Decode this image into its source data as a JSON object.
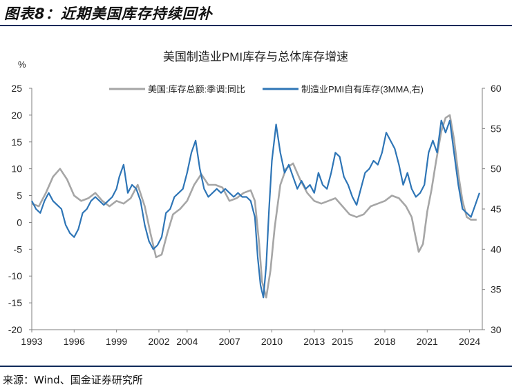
{
  "figure": {
    "label": "图表8：近期美国库存持续回补",
    "source": "来源：Wind、国金证券研究所"
  },
  "colors": {
    "us_inventory": "#a6a6a6",
    "pmi_inventory": "#2e75b6",
    "rule": "#0f2a5a"
  },
  "chart_data": {
    "type": "line",
    "title": "美国制造业PMI库存与总体库存增速",
    "ylabel_left": "%",
    "ylim_left": [
      -20,
      25
    ],
    "ylim_right": [
      30,
      60
    ],
    "yticks_left": [
      -20,
      -15,
      -10,
      -5,
      0,
      5,
      10,
      15,
      20,
      25
    ],
    "yticks_right": [
      30,
      35,
      40,
      45,
      50,
      55,
      60
    ],
    "xlim": [
      1993,
      2024.9
    ],
    "xticks": [
      1993,
      1996,
      1999,
      2002,
      2004,
      2007,
      2010,
      2013,
      2015,
      2018,
      2021,
      2024
    ],
    "legend_position": "top-center",
    "series": [
      {
        "name": "美国:库存总额:季调:同比",
        "axis": "left",
        "x": [
          1993.0,
          1993.5,
          1994.0,
          1994.5,
          1995.0,
          1995.5,
          1996.0,
          1996.5,
          1997.0,
          1997.5,
          1998.0,
          1998.5,
          1999.0,
          1999.5,
          2000.0,
          2000.5,
          2001.0,
          2001.4,
          2001.8,
          2002.2,
          2002.6,
          2003.0,
          2003.5,
          2004.0,
          2004.5,
          2005.0,
          2005.5,
          2006.0,
          2006.5,
          2007.0,
          2007.5,
          2008.0,
          2008.5,
          2008.8,
          2009.1,
          2009.3,
          2009.6,
          2009.9,
          2010.2,
          2010.6,
          2011.0,
          2011.5,
          2012.0,
          2012.5,
          2013.0,
          2013.5,
          2014.0,
          2014.5,
          2015.0,
          2015.5,
          2016.0,
          2016.5,
          2017.0,
          2017.5,
          2018.0,
          2018.5,
          2019.0,
          2019.5,
          2019.9,
          2020.2,
          2020.4,
          2020.7,
          2021.0,
          2021.3,
          2021.6,
          2022.0,
          2022.3,
          2022.6,
          2022.9,
          2023.2,
          2023.5,
          2023.8,
          2024.1,
          2024.5
        ],
        "values": [
          3.5,
          3.0,
          5.5,
          8.5,
          10.0,
          8.0,
          5.0,
          4.0,
          4.5,
          5.5,
          4.0,
          3.0,
          4.0,
          3.5,
          4.5,
          7.0,
          3.0,
          -2.0,
          -6.5,
          -6.0,
          -2.0,
          1.5,
          2.5,
          4.0,
          7.0,
          9.0,
          7.0,
          7.0,
          6.5,
          4.0,
          4.5,
          5.5,
          6.0,
          4.0,
          -4.0,
          -11.0,
          -14.0,
          -9.0,
          -1.0,
          7.0,
          10.0,
          11.0,
          8.0,
          5.5,
          4.0,
          3.5,
          4.0,
          4.5,
          3.0,
          1.5,
          1.0,
          1.5,
          3.0,
          3.5,
          4.0,
          5.0,
          4.5,
          3.0,
          1.0,
          -3.0,
          -5.5,
          -4.0,
          2.0,
          6.0,
          11.0,
          17.0,
          19.5,
          20.0,
          15.5,
          9.0,
          4.0,
          1.0,
          0.5,
          0.5
        ]
      },
      {
        "name": "制造业PMI自有库存(3MMA,右)",
        "axis": "right",
        "x": [
          1993.0,
          1993.3,
          1993.6,
          1993.9,
          1994.2,
          1994.5,
          1994.8,
          1995.1,
          1995.4,
          1995.7,
          1996.0,
          1996.3,
          1996.6,
          1996.9,
          1997.2,
          1997.5,
          1997.8,
          1998.1,
          1998.4,
          1998.7,
          1999.0,
          1999.2,
          1999.5,
          1999.8,
          2000.1,
          2000.4,
          2000.7,
          2001.0,
          2001.3,
          2001.6,
          2001.9,
          2002.2,
          2002.5,
          2002.8,
          2003.1,
          2003.4,
          2003.7,
          2004.0,
          2004.3,
          2004.6,
          2004.9,
          2005.2,
          2005.5,
          2005.8,
          2006.1,
          2006.4,
          2006.7,
          2007.0,
          2007.3,
          2007.6,
          2007.9,
          2008.2,
          2008.5,
          2008.8,
          2009.0,
          2009.2,
          2009.4,
          2009.6,
          2009.8,
          2010.0,
          2010.3,
          2010.6,
          2010.9,
          2011.2,
          2011.5,
          2011.8,
          2012.1,
          2012.4,
          2012.7,
          2013.0,
          2013.3,
          2013.6,
          2013.9,
          2014.2,
          2014.5,
          2014.8,
          2015.1,
          2015.4,
          2015.7,
          2016.0,
          2016.3,
          2016.6,
          2016.9,
          2017.2,
          2017.5,
          2017.8,
          2018.1,
          2018.4,
          2018.7,
          2019.0,
          2019.3,
          2019.6,
          2019.9,
          2020.2,
          2020.5,
          2020.8,
          2021.1,
          2021.4,
          2021.7,
          2022.0,
          2022.3,
          2022.6,
          2022.9,
          2023.2,
          2023.5,
          2023.8,
          2024.1,
          2024.4,
          2024.7
        ],
        "values": [
          46.0,
          45.0,
          44.5,
          46.0,
          47.0,
          46.0,
          45.5,
          45.0,
          43.0,
          42.0,
          41.5,
          42.5,
          44.5,
          45.0,
          46.0,
          46.5,
          46.0,
          45.5,
          46.0,
          46.5,
          47.5,
          49.0,
          50.5,
          47.0,
          48.0,
          47.5,
          46.0,
          43.0,
          41.0,
          40.0,
          40.5,
          41.5,
          44.5,
          45.0,
          46.5,
          47.0,
          47.5,
          49.5,
          52.0,
          53.5,
          50.0,
          47.5,
          46.5,
          47.0,
          47.5,
          47.0,
          47.5,
          47.0,
          46.5,
          47.0,
          46.5,
          46.5,
          46.0,
          44.0,
          39.0,
          35.5,
          34.0,
          38.0,
          45.0,
          51.0,
          55.5,
          52.0,
          49.5,
          50.5,
          49.0,
          47.5,
          48.5,
          47.5,
          48.0,
          47.0,
          49.5,
          48.0,
          47.5,
          49.5,
          52.0,
          51.5,
          49.0,
          48.0,
          46.5,
          45.5,
          47.5,
          49.5,
          50.0,
          51.0,
          50.5,
          52.0,
          54.5,
          53.5,
          52.5,
          50.5,
          48.0,
          49.5,
          47.5,
          46.5,
          47.0,
          48.0,
          52.0,
          53.5,
          52.0,
          56.0,
          54.5,
          56.0,
          52.0,
          48.0,
          45.0,
          44.5,
          44.0,
          45.5,
          47.0
        ]
      }
    ]
  }
}
